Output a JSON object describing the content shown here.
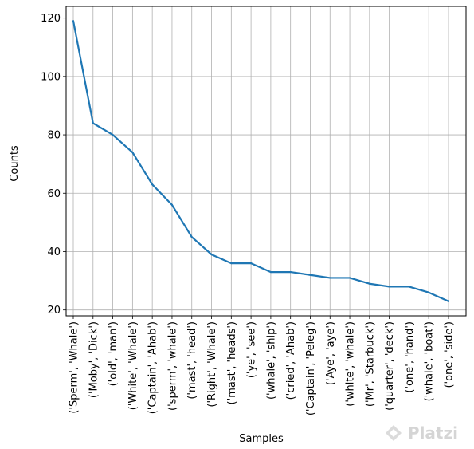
{
  "chart_data": {
    "type": "line",
    "categories": [
      "('Sperm', 'Whale')",
      "('Moby', 'Dick')",
      "('old', 'man')",
      "('White', 'Whale')",
      "('Captain', 'Ahab')",
      "('sperm', 'whale')",
      "('mast', 'head')",
      "('Right', 'Whale')",
      "('mast', 'heads')",
      "('ye', 'see')",
      "('whale', 'ship')",
      "('cried', 'Ahab')",
      "('Captain', 'Peleg')",
      "('Aye', 'aye')",
      "('white', 'whale')",
      "('Mr', 'Starbuck')",
      "('quarter', 'deck')",
      "('one', 'hand')",
      "('whale', 'boat')",
      "('one', 'side')"
    ],
    "values": [
      119,
      84,
      80,
      74,
      63,
      56,
      45,
      39,
      36,
      36,
      33,
      33,
      32,
      31,
      31,
      29,
      28,
      28,
      26,
      23
    ],
    "xlabel": "Samples",
    "ylabel": "Counts",
    "ylim": [
      18,
      124
    ],
    "yticks": [
      20,
      40,
      60,
      80,
      100,
      120
    ],
    "grid": true,
    "line_color": "#1f77b4"
  },
  "watermark": {
    "text": "Platzi"
  }
}
